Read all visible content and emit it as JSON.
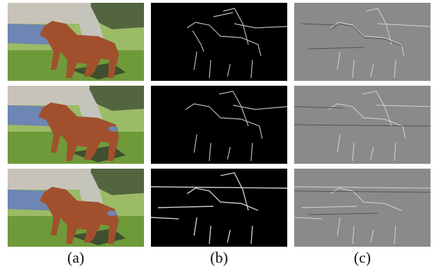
{
  "figure": {
    "columns": [
      {
        "label": "(a)",
        "kind": "segmentation"
      },
      {
        "label": "(b)",
        "kind": "edge-dark"
      },
      {
        "label": "(c)",
        "kind": "edge-gray"
      }
    ],
    "rows": 3,
    "colors": {
      "sky": "#c8c3b9",
      "field_light": "#9bbb66",
      "field_dark": "#6f9a3a",
      "water": "#6d86b3",
      "horse": "#a1502d",
      "rider": "#c4c4bc",
      "trees": "#52653e",
      "shadow": "#3f4f2f",
      "panel_b_bg": "#000000",
      "panel_c_bg": "#8a8a8a"
    }
  }
}
